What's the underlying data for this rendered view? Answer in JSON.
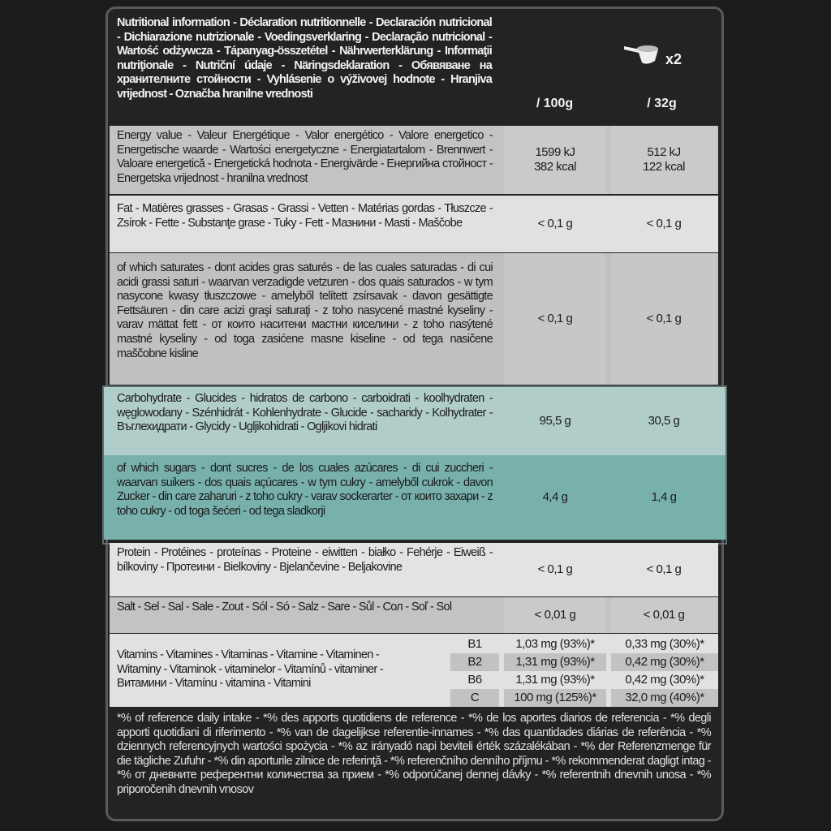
{
  "header": {
    "title": "Nutritional information - Déclaration nutritionnelle - Declaración nutricional - Dichiarazione nutrizionale - Voedingsverklaring - Declaração nutricional - Wartość odżywcza - Tápanyag-összetétel - Nährwerterklärung - Informaţii nutriţionale - Nutriční údaje - Näringsdeklaration - Обявяване на хранителните стойности - Vyhlásenie o výživovej hodnote - Hranjiva vrijednost - Označba hranilne vrednosti",
    "serving_icon": "scoop-icon",
    "serving_multiplier": "x2",
    "col1": "/ 100g",
    "col2": "/ 32g"
  },
  "rows": [
    {
      "label": "Energy value - Valeur Energétique - Valor energético - Valore energetico - Energetische waarde - Wartości energetyczne - Energiatartalom - Brennwert - Valoare energetică - Energetická hodnota - Energivärde - Енергийна стойност - Energetska vrijednost - hranilna vrednost",
      "per100": "1599 kJ\n382 kcal",
      "perServing": "512 kJ\n122 kcal"
    },
    {
      "label": "Fat - Matières grasses - Grasas - Grassi - Vetten - Matérias gordas - Tłuszcze - Zsírok - Fette - Substanţe grase - Tuky - Fett - Мазнини - Masti - Maščobe",
      "per100": "< 0,1 g",
      "perServing": "< 0,1 g"
    },
    {
      "label": "of which saturates - dont acides gras saturés - de las cuales saturadas - di cui acidi grassi saturi - waarvan verzadigde vetzuren - dos quais saturados - w tym nasycone kwasy tłuszczowe - amelyből telített zsírsavak - davon gesättigte Fettsäuren - din care acizi graşi saturaţi - z toho nasycené mastné kyseliny - varav mättat fett - от които наситени мастни киселини - z toho nasýtené mastné kyseliny - od toga zasićene masne kiseline - od tega nasičene maščobne kisline",
      "per100": "< 0,1 g",
      "perServing": "< 0,1 g"
    },
    {
      "label": "Carbohydrate - Glucides - hidratos de carbono - carboidrati - koolhydraten - węglowodany - Szénhidrát - Kohlenhydrate - Glucide - sacharidy - Kolhydrater - Въглехидрати - Glycidy - Ugljikohidrati - Ogljikovi hidrati",
      "per100": "95,5 g",
      "perServing": "30,5 g"
    },
    {
      "label": "of which sugars - dont sucres - de los cuales azúcares - di cui zuccheri - waarvan suikers - dos quais açúcares - w tym cukry - amelyből cukrok - davon Zucker - din care zaharuri - z toho cukry - varav sockerarter - от които захари - z toho cukry - od toga šećeri - od tega sladkorji",
      "per100": "4,4 g",
      "perServing": "1,4 g"
    },
    {
      "label": "Protein - Protéines - proteínas - Proteine - eiwitten - białko - Fehérje - Eiweiß - bílkoviny - Протеини - Bielkoviny - Bjelančevine - Beljakovine",
      "per100": "< 0,1 g",
      "perServing": "< 0,1 g"
    },
    {
      "label": "Salt - Sel - Sal - Sale - Zout - Sól - Só - Salz - Sare - Sůl - Сол - Soľ - Sol",
      "per100": "< 0,01 g",
      "perServing": "< 0,01 g"
    }
  ],
  "vitamins": {
    "label": "Vitamins - Vitamines - Vitaminas - Vitamine - Vitaminen - Witaminy - Vitaminok - vitaminelor - Vitamínů - vitaminer - Витамини - Vitamínu - vitamina - Vitamini",
    "items": [
      {
        "name": "B1",
        "per100": "1,03 mg (93%)*",
        "perServing": "0,33 mg (30%)*"
      },
      {
        "name": "B2",
        "per100": "1,31 mg (93%)*",
        "perServing": "0,42 mg (30%)*"
      },
      {
        "name": "B6",
        "per100": "1,31 mg (93%)*",
        "perServing": "0,42 mg (30%)*"
      },
      {
        "name": "C",
        "per100": "100 mg (125%)*",
        "perServing": "32,0 mg (40%)*"
      }
    ]
  },
  "footnote": "*% of reference daily intake - *% des apports quotidiens de reference - *% de los aportes diarios de referencia - *% degli apporti quotidiani di riferimento - *% van de dagelijkse referentie-innames - *% das quantidades diárias de referência - *% dziennych referencyjnych wartości spożycia - *% az irányadó napi beviteli érték százalékában - *% der Referenzmenge für die tägliche Zufuhr - *% din aporturile zilnice de referinţă - *% referenčního denního příjmu - *% rekommenderat dagligt intag - *% от дневните референтни количества за прием - *% odporúčanej dennej dávky - *% referentnih dnevnih unosa - *% priporočenih dnevnih vnosov",
  "colors": {
    "dark": "#232323",
    "grey": "#c3c3c3",
    "light": "#e1e1e1",
    "carb": "#b0cdca",
    "sugar": "#78b0ac"
  }
}
